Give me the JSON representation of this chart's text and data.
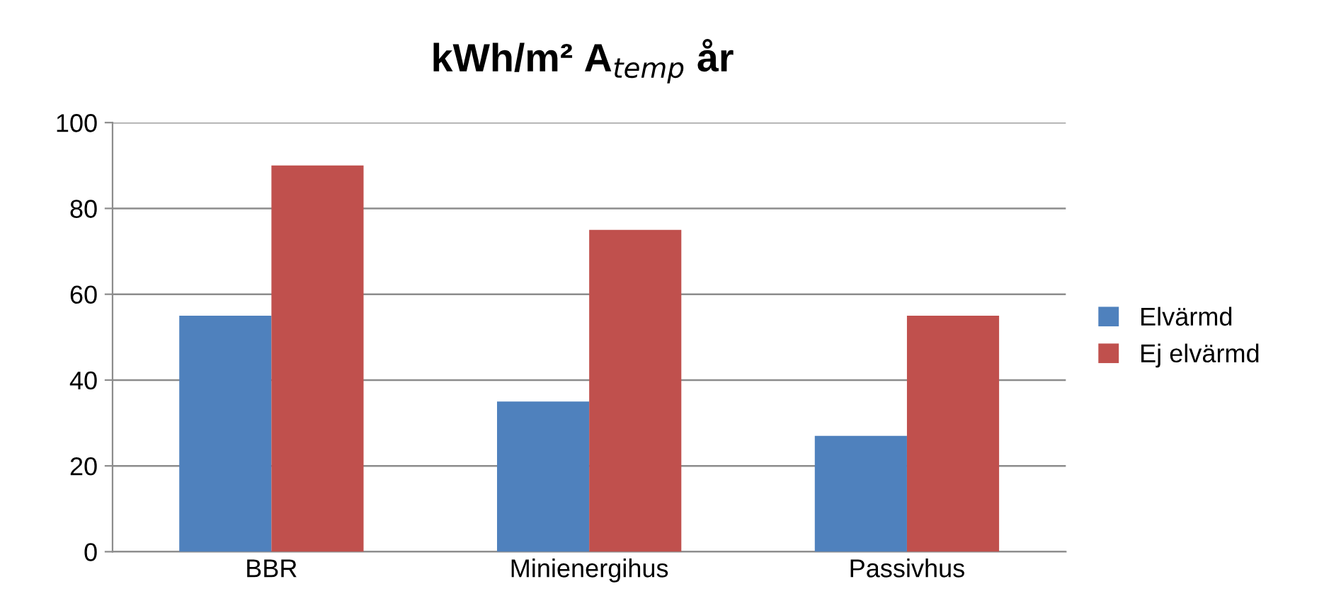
{
  "chart_data": {
    "type": "bar",
    "title": "kWh/m² A$_{temp}$ år",
    "categories": [
      "BBR",
      "Minienergihus",
      "Passivhus"
    ],
    "series": [
      {
        "name": "Elvärmd",
        "color": "#4f81bd",
        "values": [
          55,
          35,
          27
        ]
      },
      {
        "name": "Ej elvärmd",
        "color": "#c0504d",
        "values": [
          90,
          75,
          55
        ]
      }
    ],
    "ylim": [
      0,
      100
    ],
    "yticks": [
      0,
      20,
      40,
      60,
      80,
      100
    ],
    "grid": "y",
    "legend": "right"
  }
}
